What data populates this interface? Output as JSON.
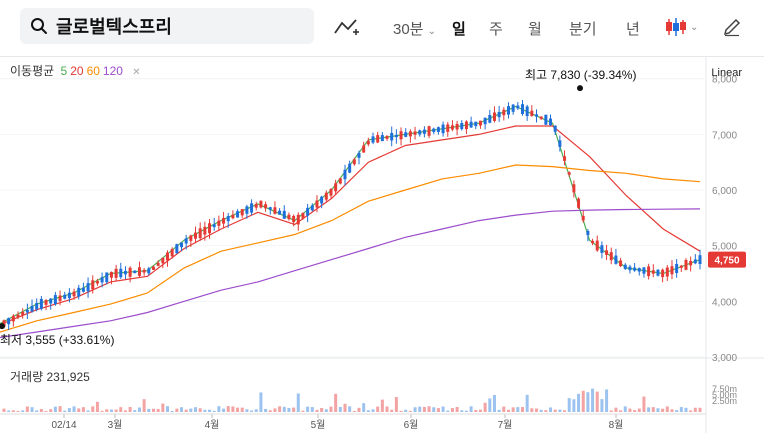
{
  "search": {
    "stock_name": "글로벌텍스프리"
  },
  "toolbar": {
    "interval_label": "30분",
    "periods": [
      "일",
      "주",
      "월",
      "분기",
      "년"
    ],
    "active_period": "일"
  },
  "legend": {
    "ma_title": "이동평균",
    "ma_periods": [
      {
        "label": "5",
        "color": "#4caf50"
      },
      {
        "label": "20",
        "color": "#e53935"
      },
      {
        "label": "60",
        "color": "#fb8c00"
      },
      {
        "label": "120",
        "color": "#9c4dcc"
      }
    ],
    "scale_label": "Linear"
  },
  "annotations": {
    "high_label": "최고 7,830 (-39.34%)",
    "low_label": "최저 3,555 (+33.61%)",
    "current_price": "4,750"
  },
  "volume": {
    "label": "거래량 231,925",
    "ticks": [
      "7.50m",
      "5.00m",
      "2.50m"
    ]
  },
  "chart_data": {
    "type": "line",
    "y_ticks": [
      "8,000",
      "7,000",
      "6,000",
      "5,000",
      "4,000",
      "3,000"
    ],
    "ylim": [
      3000,
      8300
    ],
    "x_labels": [
      "02/14",
      "3월",
      "4월",
      "5월",
      "6월",
      "7월",
      "8월"
    ],
    "series": [
      {
        "name": "5",
        "color": "#4caf50",
        "values": [
          3600,
          3950,
          4150,
          4500,
          4550,
          5100,
          5450,
          5750,
          5450,
          6000,
          6900,
          7000,
          7100,
          7200,
          7500,
          7200,
          5100,
          4600,
          4500,
          4750
        ]
      },
      {
        "name": "20",
        "color": "#e53935",
        "values": [
          3580,
          3850,
          4050,
          4350,
          4450,
          4950,
          5300,
          5600,
          5380,
          5850,
          6500,
          6800,
          6900,
          7000,
          7150,
          7150,
          6600,
          5900,
          5300,
          4900
        ]
      },
      {
        "name": "60",
        "color": "#fb8c00",
        "values": [
          3450,
          3650,
          3800,
          3950,
          4150,
          4600,
          4900,
          5050,
          5200,
          5450,
          5800,
          6000,
          6200,
          6300,
          6450,
          6420,
          6350,
          6300,
          6200,
          6150
        ]
      },
      {
        "name": "120",
        "color": "#9c4dcc",
        "values": [
          3350,
          3450,
          3550,
          3650,
          3800,
          4000,
          4200,
          4350,
          4550,
          4750,
          4950,
          5150,
          5300,
          5450,
          5550,
          5620,
          5640,
          5650,
          5655,
          5660
        ]
      }
    ]
  }
}
